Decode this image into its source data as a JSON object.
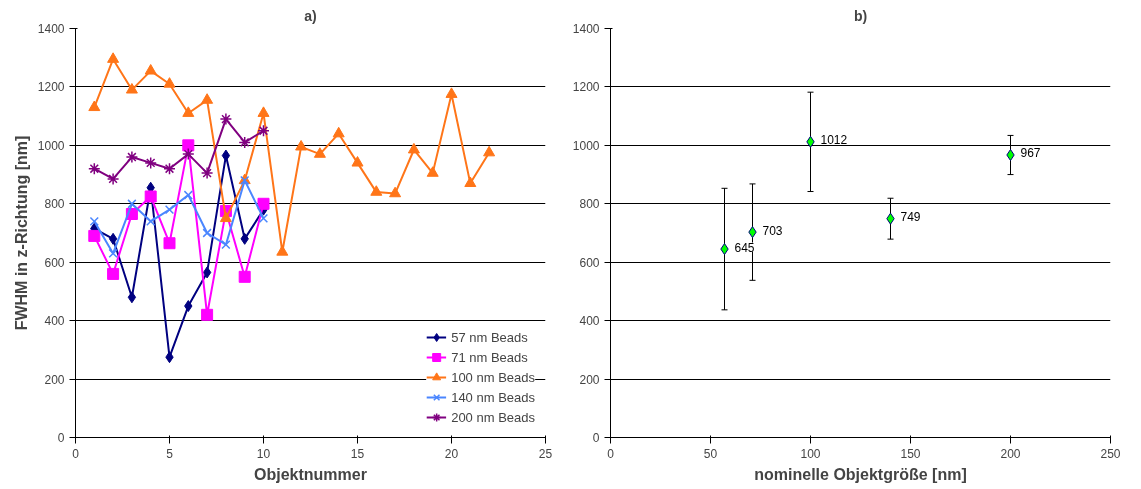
{
  "chart_data": [
    {
      "type": "line",
      "title": "a)",
      "xlabel": "Objektnummer",
      "ylabel": "FWHM in z-Richtung [nm]",
      "xlim": [
        0,
        25
      ],
      "xticks": [
        0,
        5,
        10,
        15,
        20,
        25
      ],
      "ylim": [
        0,
        1400
      ],
      "yticks": [
        0,
        200,
        400,
        600,
        800,
        1000,
        1200,
        1400
      ],
      "grid": "y",
      "legend": "bottom right",
      "series": [
        {
          "name": "57 nm Beads",
          "color": "#000080",
          "marker": "diamond",
          "x": [
            1,
            2,
            3,
            4,
            5,
            6,
            7,
            8,
            9,
            10
          ],
          "values": [
            715,
            680,
            480,
            855,
            275,
            450,
            565,
            965,
            680,
            780
          ]
        },
        {
          "name": "71 nm Beads",
          "color": "#ff00ff",
          "marker": "square",
          "x": [
            1,
            2,
            3,
            4,
            5,
            6,
            7,
            8,
            9,
            10
          ],
          "values": [
            690,
            560,
            765,
            825,
            665,
            1000,
            420,
            775,
            550,
            800
          ]
        },
        {
          "name": "100 nm Beads",
          "color": "#ff7518",
          "marker": "triangle",
          "x": [
            1,
            2,
            3,
            4,
            5,
            6,
            7,
            8,
            9,
            10,
            11,
            12,
            13,
            14,
            15,
            16,
            17,
            18,
            19,
            20,
            21,
            22
          ],
          "values": [
            1130,
            1295,
            1190,
            1255,
            1210,
            1110,
            1155,
            750,
            880,
            1110,
            635,
            995,
            970,
            1040,
            940,
            840,
            835,
            985,
            905,
            1175,
            870,
            975
          ]
        },
        {
          "name": "140 nm Beads",
          "color": "#4a86ff",
          "marker": "cross",
          "x": [
            1,
            2,
            3,
            4,
            5,
            6,
            7,
            8,
            9,
            10
          ],
          "values": [
            740,
            630,
            800,
            740,
            780,
            830,
            700,
            660,
            880,
            750
          ]
        },
        {
          "name": "200 nm Beads",
          "color": "#800080",
          "marker": "cross",
          "x": [
            1,
            2,
            3,
            4,
            5,
            6,
            7,
            8,
            9,
            10
          ],
          "values": [
            920,
            885,
            960,
            940,
            920,
            970,
            905,
            1090,
            1010,
            1050
          ]
        }
      ]
    },
    {
      "type": "scatter",
      "title": "b)",
      "xlabel": "nominelle Objektgröße [nm]",
      "xlim": [
        0,
        250
      ],
      "xticks": [
        0,
        50,
        100,
        150,
        200,
        250
      ],
      "ylim": [
        0,
        1400
      ],
      "yticks": [
        0,
        200,
        400,
        600,
        800,
        1000,
        1200,
        1400
      ],
      "grid": "y",
      "marker": "diamond",
      "data_labels": true,
      "series": [
        {
          "color": "#00ff00",
          "x": [
            57,
            71,
            100,
            140,
            200
          ],
          "values": [
            645,
            703,
            1012,
            749,
            967
          ],
          "errors": [
            208,
            165,
            170,
            70,
            67
          ]
        }
      ]
    }
  ]
}
